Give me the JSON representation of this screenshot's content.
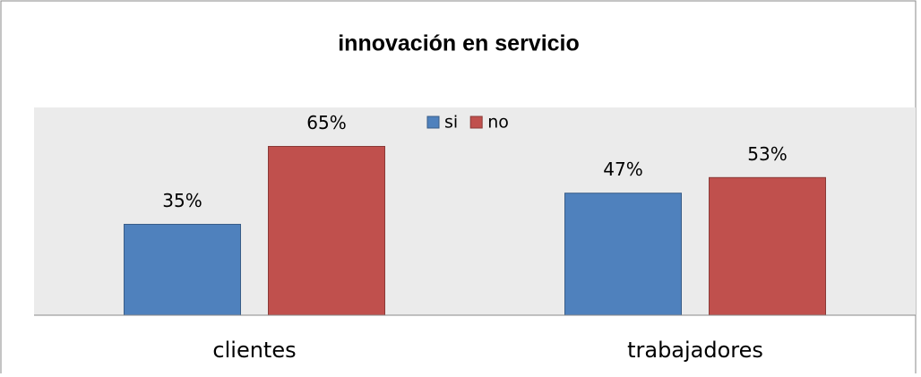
{
  "chart_data": {
    "type": "bar",
    "title": "innovación en servicio",
    "categories": [
      "clientes",
      "trabajadores"
    ],
    "series": [
      {
        "name": "si",
        "color": "#4f81bd",
        "values": [
          35,
          47
        ],
        "value_labels": [
          "35%",
          "47%"
        ]
      },
      {
        "name": "no",
        "color": "#c0504d",
        "values": [
          65,
          53
        ],
        "value_labels": [
          "65%",
          "53%"
        ]
      }
    ],
    "ylim": [
      0,
      80
    ],
    "legend": "top"
  }
}
